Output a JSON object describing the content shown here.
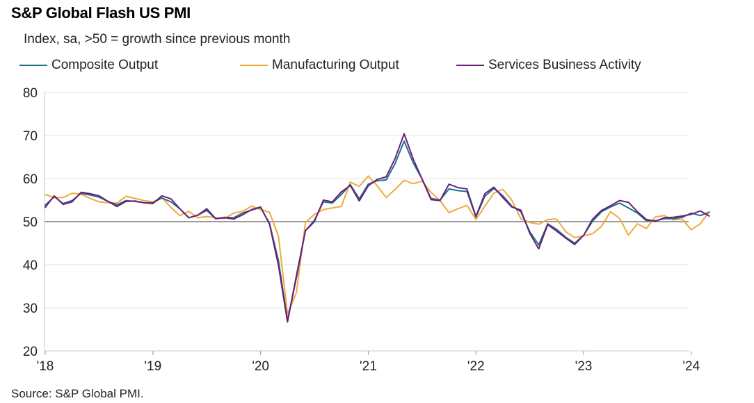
{
  "title": "S&P Global Flash US PMI",
  "subtitle": "Index, sa, >50 = growth since previous month",
  "source": "Source: S&P Global PMI.",
  "chart_data": {
    "type": "line",
    "title": "S&P Global Flash US PMI",
    "subtitle": "Index, sa, >50 = growth since previous month",
    "ylim": [
      20,
      80
    ],
    "yticks": [
      20,
      30,
      40,
      50,
      60,
      70,
      80
    ],
    "x_start": "2018-01",
    "x_end": "2024-03",
    "xticks": [
      {
        "label": "'18",
        "index": 0
      },
      {
        "label": "'19",
        "index": 12
      },
      {
        "label": "'20",
        "index": 24
      },
      {
        "label": "'21",
        "index": 36
      },
      {
        "label": "'22",
        "index": 48
      },
      {
        "label": "'23",
        "index": 60
      },
      {
        "label": "'24",
        "index": 72
      }
    ],
    "reference_line": 50,
    "grid": "horizontal",
    "legend_position": "top",
    "series": [
      {
        "name": "Composite Output",
        "color": "#1f6f8b",
        "values": [
          53.8,
          55.8,
          54.2,
          54.9,
          56.6,
          56.2,
          55.7,
          54.7,
          53.9,
          54.9,
          54.7,
          54.4,
          54.4,
          55.5,
          54.6,
          53.0,
          50.9,
          51.5,
          52.6,
          50.7,
          51.0,
          50.9,
          52.0,
          52.7,
          53.3,
          49.6,
          40.9,
          27.0,
          37.0,
          47.9,
          50.3,
          54.6,
          54.3,
          56.3,
          58.6,
          55.3,
          58.7,
          59.5,
          59.7,
          63.5,
          68.7,
          63.7,
          59.9,
          55.4,
          55.0,
          57.6,
          57.2,
          57.0,
          51.1,
          55.9,
          57.7,
          56.0,
          53.6,
          52.3,
          47.7,
          44.6,
          49.5,
          48.2,
          46.4,
          45.0,
          46.8,
          50.1,
          52.3,
          53.4,
          54.3,
          53.2,
          52.0,
          50.2,
          50.2,
          50.7,
          50.7,
          51.0,
          52.0,
          51.4,
          52.2
        ]
      },
      {
        "name": "Manufacturing Output",
        "color": "#f0a93b",
        "values": [
          56.3,
          55.6,
          55.6,
          56.6,
          56.4,
          55.4,
          54.6,
          54.4,
          54.3,
          55.9,
          55.4,
          54.9,
          54.6,
          55.6,
          53.3,
          51.4,
          52.4,
          50.9,
          51.2,
          50.9,
          50.7,
          52.0,
          52.4,
          53.6,
          52.8,
          52.2,
          46.6,
          28.5,
          33.5,
          49.8,
          51.7,
          52.8,
          53.2,
          53.5,
          59.2,
          58.2,
          60.6,
          58.3,
          55.6,
          57.5,
          59.6,
          58.8,
          59.4,
          56.8,
          54.9,
          52.1,
          53.0,
          53.8,
          50.5,
          53.6,
          56.6,
          57.5,
          55.0,
          50.7,
          49.8,
          49.4,
          50.5,
          50.6,
          47.7,
          46.3,
          46.7,
          47.2,
          48.9,
          52.3,
          50.8,
          46.9,
          49.5,
          48.4,
          51.1,
          51.4,
          50.4,
          50.6,
          48.1,
          49.5,
          52.3
        ]
      },
      {
        "name": "Services Business Activity",
        "color": "#6a1f7a",
        "values": [
          53.3,
          56.0,
          54.0,
          54.6,
          56.8,
          56.5,
          56.0,
          54.7,
          53.5,
          54.7,
          54.8,
          54.4,
          54.2,
          56.0,
          55.3,
          53.0,
          50.9,
          51.5,
          53.0,
          50.7,
          50.9,
          50.6,
          51.6,
          52.8,
          53.4,
          49.4,
          39.8,
          26.7,
          37.5,
          47.9,
          50.0,
          55.0,
          54.6,
          56.9,
          58.4,
          54.8,
          58.3,
          59.8,
          60.4,
          64.7,
          70.4,
          64.6,
          59.9,
          55.1,
          54.9,
          58.7,
          57.9,
          57.6,
          51.2,
          56.5,
          58.0,
          55.6,
          53.4,
          52.7,
          47.3,
          43.7,
          49.3,
          47.8,
          46.2,
          44.7,
          46.8,
          50.6,
          52.6,
          53.7,
          54.9,
          54.5,
          52.3,
          50.5,
          50.1,
          50.9,
          51.0,
          51.3,
          51.7,
          52.5,
          51.3
        ]
      }
    ]
  }
}
